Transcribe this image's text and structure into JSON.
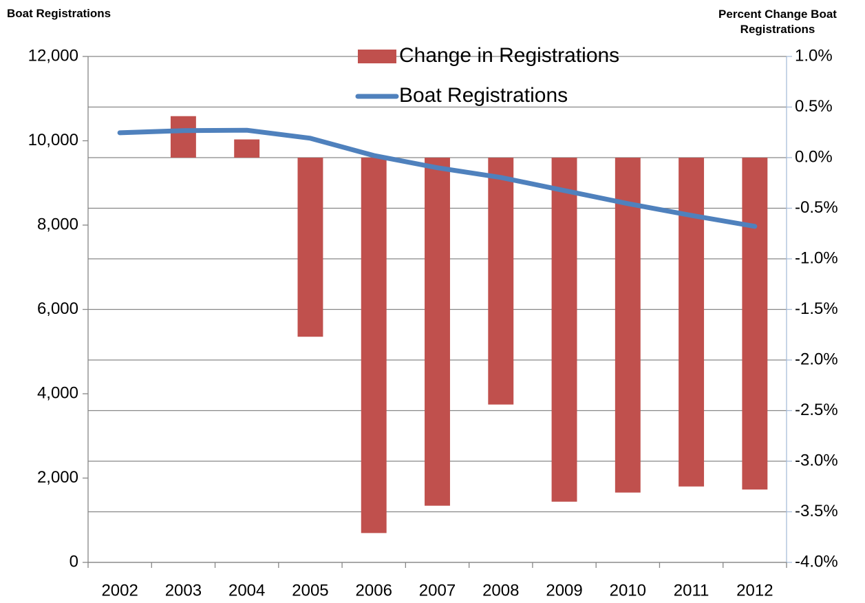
{
  "chart_data": {
    "type": "combo",
    "y_label": "Boat Registrations",
    "y2_label": "Percent Change Boat Registrations",
    "categories": [
      "2002",
      "2003",
      "2004",
      "2005",
      "2006",
      "2007",
      "2008",
      "2009",
      "2010",
      "2011",
      "2012"
    ],
    "series": [
      {
        "name": "Change in Registrations",
        "type": "bar",
        "axis": "y2",
        "color": "#c0504d",
        "values": [
          0,
          0.41,
          0.18,
          -1.77,
          -3.71,
          -3.44,
          -2.44,
          -3.4,
          -3.31,
          -3.25,
          -3.28
        ]
      },
      {
        "name": "Boat Registrations",
        "type": "line",
        "axis": "y",
        "color": "#4f81bd",
        "values": [
          10190,
          10240,
          10250,
          10060,
          9650,
          9360,
          9130,
          8820,
          8510,
          8230,
          7970
        ]
      }
    ],
    "ylim": [
      0,
      12000
    ],
    "yticks": [
      0,
      {
        "value": 2000,
        "label": "2,000"
      },
      {
        "value": 4000,
        "label": "4,000"
      },
      {
        "value": 6000,
        "label": "6,000"
      },
      {
        "value": 8000,
        "label": "8,000"
      },
      {
        "value": 10000,
        "label": "10,000"
      },
      {
        "value": 12000,
        "label": "12,000"
      }
    ],
    "y2lim": [
      -4,
      1
    ],
    "y2ticks": [
      {
        "value": -4,
        "label": "-4.0%"
      },
      {
        "value": -3.5,
        "label": "-3.5%"
      },
      {
        "value": -3,
        "label": "-3.0%"
      },
      {
        "value": -2.5,
        "label": "-2.5%"
      },
      {
        "value": -2,
        "label": "-2.0%"
      },
      {
        "value": -1.5,
        "label": "-1.5%"
      },
      {
        "value": -1,
        "label": "-1.0%"
      },
      {
        "value": -0.5,
        "label": "-0.5%"
      },
      {
        "value": 0,
        "label": "0.0%"
      },
      {
        "value": 0.5,
        "label": "0.5%"
      },
      {
        "value": 1,
        "label": "1.0%"
      }
    ],
    "grid": true,
    "legend": "top"
  }
}
